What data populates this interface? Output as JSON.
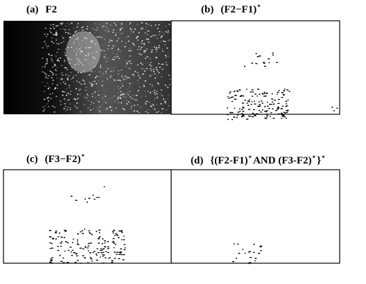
{
  "panels": [
    {
      "label": "(a)",
      "caption": [
        "F2"
      ]
    },
    {
      "label": "(b)",
      "caption": [
        "(F2−F1)",
        "*"
      ]
    },
    {
      "label": "(c)",
      "caption": [
        "(F3−F2)",
        "*"
      ]
    },
    {
      "label": "(d)",
      "caption": [
        "{(F2-F1)",
        "*",
        "AND (F3-F2)",
        "*",
        "}",
        "*"
      ]
    }
  ]
}
